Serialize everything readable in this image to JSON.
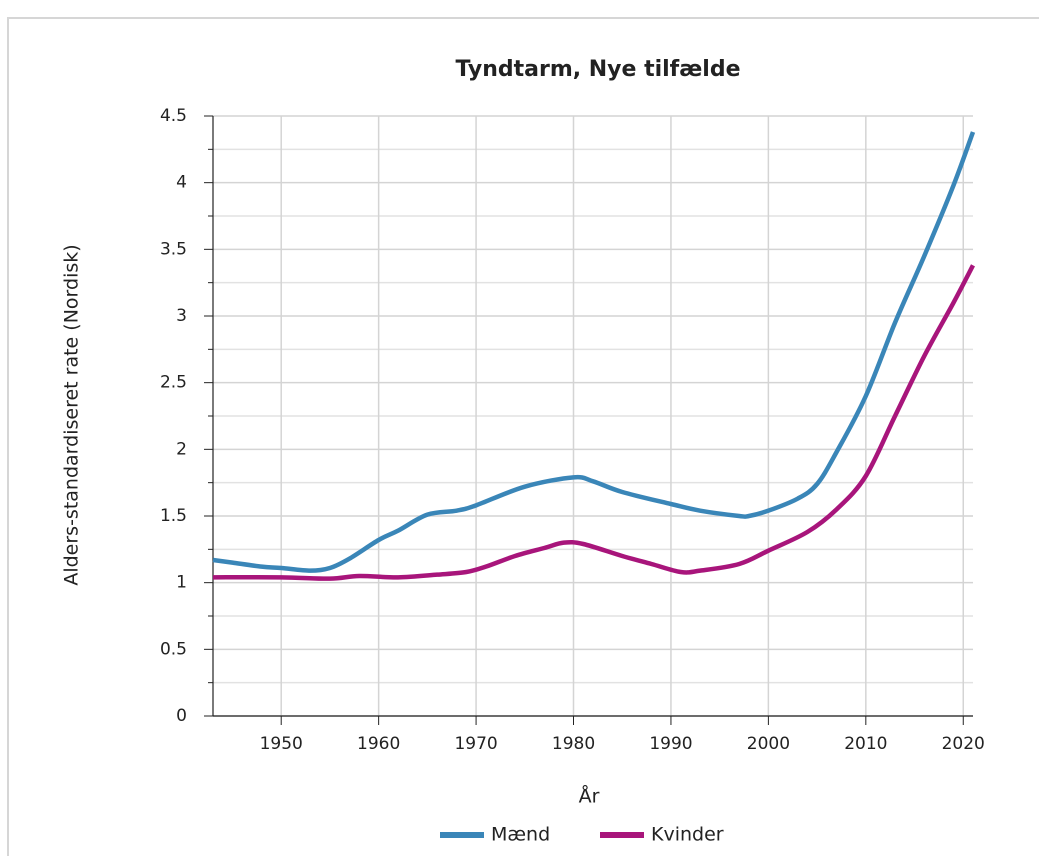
{
  "chart_data": {
    "type": "line",
    "title": "Tyndtarm, Nye tilfælde",
    "x_label": "År",
    "y_label": "Alders-standardiseret rate (Nordisk)",
    "xlim": [
      1943,
      2021
    ],
    "xticks": [
      1950,
      1960,
      1970,
      1980,
      1990,
      2000,
      2010,
      2020
    ],
    "ylim": [
      0,
      4.5
    ],
    "yticks": [
      0,
      0.5,
      1,
      1.5,
      2,
      2.5,
      3,
      3.5,
      4,
      4.5
    ],
    "yminorticks": [
      0.25,
      0.75,
      1.25,
      1.75,
      2.25,
      2.75,
      3.25,
      3.75,
      4.25
    ],
    "grid": true,
    "legend": "bottom",
    "series": [
      {
        "name": "Mænd",
        "color": "#3a86b8",
        "x": [
          1943,
          1945,
          1948,
          1950,
          1953,
          1955,
          1957,
          1960,
          1962,
          1965,
          1968,
          1970,
          1975,
          1980,
          1982,
          1985,
          1990,
          1993,
          1997,
          1998,
          2000,
          2003,
          2005,
          2007,
          2010,
          2013,
          2016,
          2019,
          2021
        ],
        "values": [
          1.17,
          1.15,
          1.12,
          1.11,
          1.09,
          1.11,
          1.18,
          1.32,
          1.39,
          1.51,
          1.54,
          1.58,
          1.72,
          1.79,
          1.76,
          1.68,
          1.59,
          1.54,
          1.5,
          1.5,
          1.54,
          1.63,
          1.74,
          1.98,
          2.4,
          2.95,
          3.45,
          3.98,
          4.38
        ]
      },
      {
        "name": "Kvinder",
        "color": "#a8157b",
        "x": [
          1943,
          1950,
          1955,
          1958,
          1962,
          1966,
          1969,
          1971,
          1974,
          1977,
          1979,
          1981,
          1985,
          1988,
          1991,
          1993,
          1997,
          2000,
          2004,
          2007,
          2010,
          2013,
          2016,
          2019,
          2021
        ],
        "values": [
          1.04,
          1.04,
          1.03,
          1.05,
          1.04,
          1.06,
          1.08,
          1.12,
          1.2,
          1.26,
          1.3,
          1.29,
          1.2,
          1.14,
          1.08,
          1.09,
          1.14,
          1.24,
          1.38,
          1.55,
          1.8,
          2.25,
          2.7,
          3.1,
          3.38
        ]
      }
    ]
  }
}
